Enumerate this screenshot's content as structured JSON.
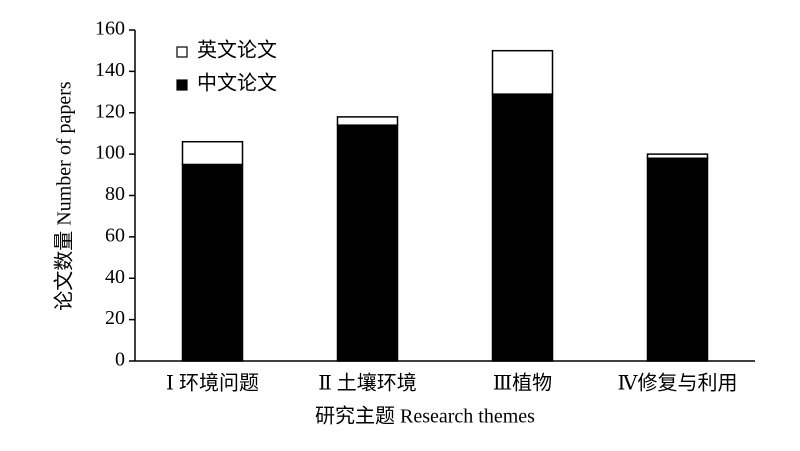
{
  "chart_data": {
    "type": "bar",
    "stacked": true,
    "categories": [
      "Ⅰ 环境问题",
      "Ⅱ 土壤环境",
      "Ⅲ植物",
      "Ⅳ修复与利用"
    ],
    "series": [
      {
        "name": "中文论文",
        "color": "#000000",
        "values": [
          95,
          114,
          129,
          98
        ]
      },
      {
        "name": "英文论文",
        "color": "#ffffff",
        "values": [
          11,
          4,
          21,
          2
        ]
      }
    ],
    "xlabel": "研究主题 Research themes",
    "ylabel": "论文数量 Number of papers",
    "ylim": [
      0,
      160
    ],
    "yticks": [
      0,
      20,
      40,
      60,
      80,
      100,
      120,
      140,
      160
    ],
    "legend": "upper left",
    "grid": false
  }
}
